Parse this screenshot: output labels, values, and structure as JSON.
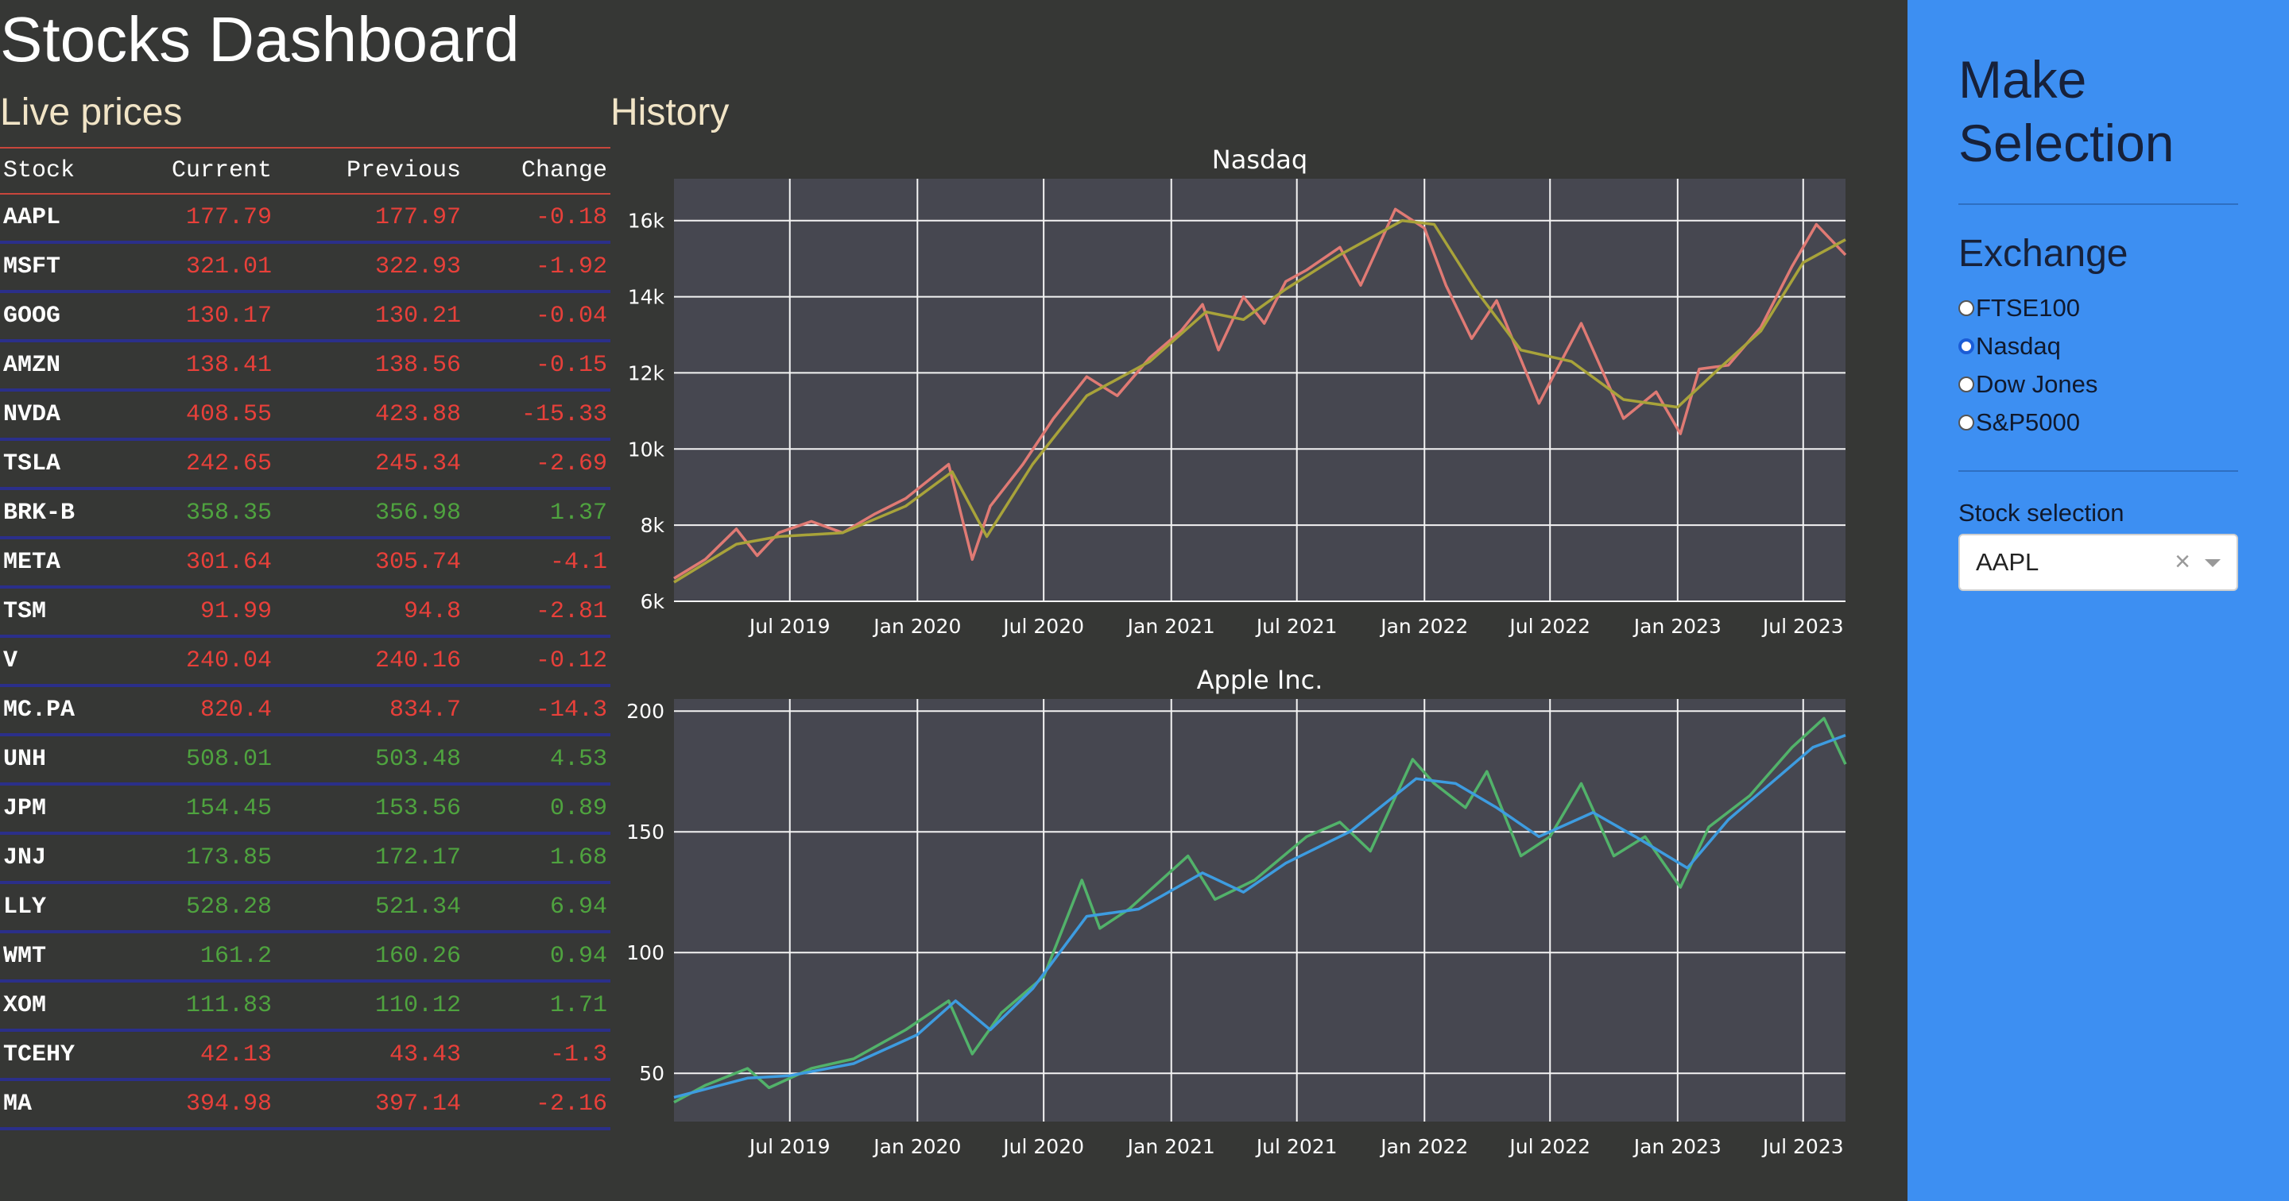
{
  "header": {
    "title": "Stocks Dashboard"
  },
  "live": {
    "heading": "Live prices",
    "columns": [
      "Stock",
      "Current",
      "Previous",
      "Change"
    ],
    "rows": [
      {
        "stock": "AAPL",
        "current": "177.79",
        "previous": "177.97",
        "change": "-0.18",
        "dir": "down"
      },
      {
        "stock": "MSFT",
        "current": "321.01",
        "previous": "322.93",
        "change": "-1.92",
        "dir": "down"
      },
      {
        "stock": "GOOG",
        "current": "130.17",
        "previous": "130.21",
        "change": "-0.04",
        "dir": "down"
      },
      {
        "stock": "AMZN",
        "current": "138.41",
        "previous": "138.56",
        "change": "-0.15",
        "dir": "down"
      },
      {
        "stock": "NVDA",
        "current": "408.55",
        "previous": "423.88",
        "change": "-15.33",
        "dir": "down"
      },
      {
        "stock": "TSLA",
        "current": "242.65",
        "previous": "245.34",
        "change": "-2.69",
        "dir": "down"
      },
      {
        "stock": "BRK-B",
        "current": "358.35",
        "previous": "356.98",
        "change": "1.37",
        "dir": "up"
      },
      {
        "stock": "META",
        "current": "301.64",
        "previous": "305.74",
        "change": "-4.1",
        "dir": "down"
      },
      {
        "stock": "TSM",
        "current": "91.99",
        "previous": "94.8",
        "change": "-2.81",
        "dir": "down"
      },
      {
        "stock": "V",
        "current": "240.04",
        "previous": "240.16",
        "change": "-0.12",
        "dir": "down"
      },
      {
        "stock": "MC.PA",
        "current": "820.4",
        "previous": "834.7",
        "change": "-14.3",
        "dir": "down"
      },
      {
        "stock": "UNH",
        "current": "508.01",
        "previous": "503.48",
        "change": "4.53",
        "dir": "up"
      },
      {
        "stock": "JPM",
        "current": "154.45",
        "previous": "153.56",
        "change": "0.89",
        "dir": "up"
      },
      {
        "stock": "JNJ",
        "current": "173.85",
        "previous": "172.17",
        "change": "1.68",
        "dir": "up"
      },
      {
        "stock": "LLY",
        "current": "528.28",
        "previous": "521.34",
        "change": "6.94",
        "dir": "up"
      },
      {
        "stock": "WMT",
        "current": "161.2",
        "previous": "160.26",
        "change": "0.94",
        "dir": "up"
      },
      {
        "stock": "XOM",
        "current": "111.83",
        "previous": "110.12",
        "change": "1.71",
        "dir": "up"
      },
      {
        "stock": "TCEHY",
        "current": "42.13",
        "previous": "43.43",
        "change": "-1.3",
        "dir": "down"
      },
      {
        "stock": "MA",
        "current": "394.98",
        "previous": "397.14",
        "change": "-2.16",
        "dir": "down"
      }
    ]
  },
  "history": {
    "heading": "History"
  },
  "colors": {
    "background": "#363735",
    "plot_bg": "#464750",
    "sidebar": "#3d8ff2",
    "up": "#4fa33f",
    "down": "#e8403a",
    "nasdaq_price": "#e07a74",
    "nasdaq_avg": "#a8a33a",
    "apple_price": "#52b26a",
    "apple_avg": "#3d9ce0"
  },
  "chart_data": [
    {
      "type": "line",
      "title": "Nasdaq",
      "xlabel": "",
      "ylabel": "",
      "x_ticks": [
        "Jul 2019",
        "Jan 2020",
        "Jul 2020",
        "Jan 2021",
        "Jul 2021",
        "Jan 2022",
        "Jul 2022",
        "Jan 2023",
        "Jul 2023"
      ],
      "x_tick_dates": [
        "2019-07-01",
        "2020-01-01",
        "2020-07-01",
        "2021-01-01",
        "2021-07-01",
        "2022-01-01",
        "2022-07-01",
        "2023-01-01",
        "2023-07-01"
      ],
      "xlim": [
        "2019-01-15",
        "2023-08-31"
      ],
      "y_ticks": [
        6000,
        8000,
        10000,
        12000,
        14000,
        16000
      ],
      "y_tick_labels": [
        "6k",
        "8k",
        "10k",
        "12k",
        "14k",
        "16k"
      ],
      "ylim": [
        6000,
        17100
      ],
      "grid": true,
      "series": [
        {
          "role": "price",
          "color": "#e07a74",
          "x": [
            "2019-01-15",
            "2019-03-01",
            "2019-04-15",
            "2019-05-15",
            "2019-06-15",
            "2019-08-01",
            "2019-09-15",
            "2019-11-01",
            "2019-12-15",
            "2020-02-15",
            "2020-03-20",
            "2020-04-15",
            "2020-06-01",
            "2020-07-15",
            "2020-09-01",
            "2020-10-15",
            "2020-12-01",
            "2021-01-15",
            "2021-02-15",
            "2021-03-10",
            "2021-04-15",
            "2021-05-15",
            "2021-06-15",
            "2021-07-15",
            "2021-09-01",
            "2021-10-01",
            "2021-11-20",
            "2022-01-01",
            "2022-02-01",
            "2022-03-10",
            "2022-04-15",
            "2022-06-15",
            "2022-08-15",
            "2022-10-15",
            "2022-12-01",
            "2023-01-05",
            "2023-02-01",
            "2023-03-15",
            "2023-05-01",
            "2023-06-15",
            "2023-07-20",
            "2023-08-31"
          ],
          "y": [
            6600,
            7100,
            7900,
            7200,
            7800,
            8100,
            7800,
            8300,
            8700,
            9600,
            7100,
            8500,
            9600,
            10800,
            11900,
            11400,
            12400,
            13100,
            13800,
            12600,
            14000,
            13300,
            14400,
            14700,
            15300,
            14300,
            16300,
            15800,
            14300,
            12900,
            13900,
            11200,
            13300,
            10800,
            11500,
            10400,
            12100,
            12200,
            13200,
            14800,
            15900,
            15100
          ]
        },
        {
          "role": "moving-average",
          "color": "#a8a33a",
          "x": [
            "2019-01-15",
            "2019-04-15",
            "2019-06-15",
            "2019-09-15",
            "2019-12-15",
            "2020-02-20",
            "2020-04-10",
            "2020-06-15",
            "2020-09-01",
            "2020-12-01",
            "2021-02-20",
            "2021-04-15",
            "2021-06-15",
            "2021-09-01",
            "2021-11-30",
            "2022-01-15",
            "2022-03-15",
            "2022-05-20",
            "2022-08-01",
            "2022-10-15",
            "2023-01-01",
            "2023-03-01",
            "2023-05-01",
            "2023-07-01",
            "2023-08-31"
          ],
          "y": [
            6500,
            7500,
            7700,
            7800,
            8500,
            9400,
            7700,
            9600,
            11400,
            12300,
            13600,
            13400,
            14200,
            15100,
            16000,
            15900,
            14200,
            12600,
            12300,
            11300,
            11100,
            12100,
            13100,
            14900,
            15500
          ]
        }
      ]
    },
    {
      "type": "line",
      "title": "Apple Inc.",
      "xlabel": "",
      "ylabel": "",
      "x_ticks": [
        "Jul 2019",
        "Jan 2020",
        "Jul 2020",
        "Jan 2021",
        "Jul 2021",
        "Jan 2022",
        "Jul 2022",
        "Jan 2023",
        "Jul 2023"
      ],
      "x_tick_dates": [
        "2019-07-01",
        "2020-01-01",
        "2020-07-01",
        "2021-01-01",
        "2021-07-01",
        "2022-01-01",
        "2022-07-01",
        "2023-01-01",
        "2023-07-01"
      ],
      "xlim": [
        "2019-01-15",
        "2023-08-31"
      ],
      "y_ticks": [
        50,
        100,
        150,
        200
      ],
      "y_tick_labels": [
        "50",
        "100",
        "150",
        "200"
      ],
      "ylim": [
        30,
        205
      ],
      "grid": true,
      "series": [
        {
          "role": "price",
          "color": "#52b26a",
          "x": [
            "2019-01-15",
            "2019-03-01",
            "2019-05-01",
            "2019-06-01",
            "2019-08-01",
            "2019-10-01",
            "2019-12-15",
            "2020-02-15",
            "2020-03-20",
            "2020-05-01",
            "2020-07-01",
            "2020-08-25",
            "2020-09-20",
            "2020-11-01",
            "2021-01-25",
            "2021-03-05",
            "2021-05-01",
            "2021-07-15",
            "2021-09-01",
            "2021-10-15",
            "2021-12-15",
            "2022-01-15",
            "2022-03-01",
            "2022-04-01",
            "2022-05-20",
            "2022-07-01",
            "2022-08-15",
            "2022-10-01",
            "2022-11-15",
            "2023-01-05",
            "2023-02-15",
            "2023-04-15",
            "2023-06-15",
            "2023-07-31",
            "2023-08-31"
          ],
          "y": [
            38,
            45,
            52,
            44,
            52,
            56,
            68,
            80,
            58,
            75,
            90,
            130,
            110,
            118,
            140,
            122,
            130,
            148,
            154,
            142,
            180,
            170,
            160,
            175,
            140,
            148,
            170,
            140,
            148,
            127,
            152,
            165,
            185,
            197,
            178
          ]
        },
        {
          "role": "moving-average",
          "color": "#3d9ce0",
          "x": [
            "2019-01-15",
            "2019-05-01",
            "2019-07-01",
            "2019-10-01",
            "2020-01-01",
            "2020-02-25",
            "2020-04-15",
            "2020-06-15",
            "2020-09-01",
            "2020-11-15",
            "2021-02-15",
            "2021-04-15",
            "2021-06-15",
            "2021-09-15",
            "2021-12-20",
            "2022-02-15",
            "2022-04-15",
            "2022-06-15",
            "2022-09-01",
            "2022-11-01",
            "2023-01-15",
            "2023-03-15",
            "2023-05-15",
            "2023-07-15",
            "2023-08-31"
          ],
          "y": [
            40,
            48,
            49,
            54,
            66,
            80,
            68,
            85,
            115,
            118,
            133,
            125,
            137,
            150,
            172,
            170,
            160,
            148,
            158,
            148,
            135,
            155,
            170,
            185,
            190
          ]
        }
      ]
    }
  ],
  "sidebar": {
    "title": "Make Selection",
    "exchange": {
      "heading": "Exchange",
      "options": [
        "FTSE100",
        "Nasdaq",
        "Dow Jones",
        "S&P5000"
      ],
      "selected": "Nasdaq"
    },
    "stock": {
      "label": "Stock selection",
      "value": "AAPL",
      "clear_glyph": "×"
    }
  }
}
